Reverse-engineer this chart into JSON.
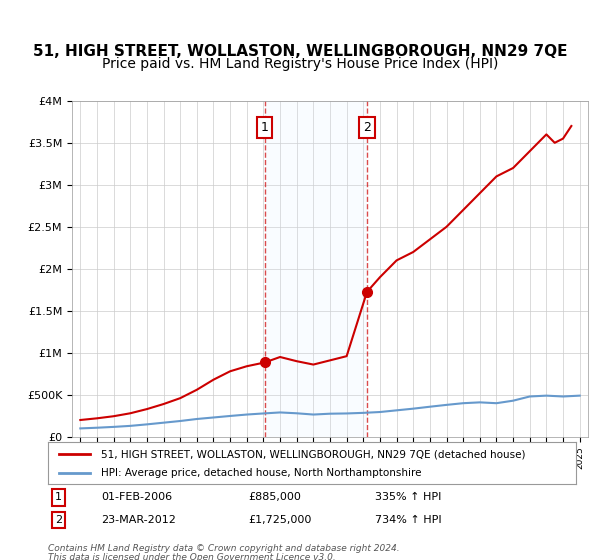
{
  "title": "51, HIGH STREET, WOLLASTON, WELLINGBOROUGH, NN29 7QE",
  "subtitle": "Price paid vs. HM Land Registry's House Price Index (HPI)",
  "legend_line1": "51, HIGH STREET, WOLLASTON, WELLINGBOROUGH, NN29 7QE (detached house)",
  "legend_line2": "HPI: Average price, detached house, North Northamptonshire",
  "footer1": "Contains HM Land Registry data © Crown copyright and database right 2024.",
  "footer2": "This data is licensed under the Open Government Licence v3.0.",
  "annotation1_label": "1",
  "annotation1_date": "01-FEB-2006",
  "annotation1_price": "£885,000",
  "annotation1_hpi": "335% ↑ HPI",
  "annotation2_label": "2",
  "annotation2_date": "23-MAR-2012",
  "annotation2_price": "£1,725,000",
  "annotation2_hpi": "734% ↑ HPI",
  "marker1_x": 2006.08,
  "marker1_y": 885000,
  "marker2_x": 2012.22,
  "marker2_y": 1725000,
  "xlim": [
    1994.5,
    2025.5
  ],
  "ylim": [
    0,
    4000000
  ],
  "yticks": [
    0,
    500000,
    1000000,
    1500000,
    2000000,
    2500000,
    3000000,
    3500000,
    4000000
  ],
  "ytick_labels": [
    "£0",
    "£500K",
    "£1M",
    "£1.5M",
    "£2M",
    "£2.5M",
    "£3M",
    "£3.5M",
    "£4M"
  ],
  "background_color": "#ffffff",
  "grid_color": "#cccccc",
  "red_color": "#cc0000",
  "blue_color": "#6699cc",
  "shaded_color": "#ddeeff",
  "title_fontsize": 11,
  "subtitle_fontsize": 10,
  "red_line": {
    "x": [
      1995,
      1996,
      1997,
      1998,
      1999,
      2000,
      2001,
      2002,
      2003,
      2004,
      2005,
      2006.08,
      2007,
      2008,
      2009,
      2010,
      2011,
      2012.22,
      2013,
      2014,
      2015,
      2016,
      2017,
      2018,
      2019,
      2020,
      2021,
      2022,
      2023,
      2023.5,
      2024,
      2024.5
    ],
    "y": [
      200000,
      220000,
      245000,
      280000,
      330000,
      390000,
      460000,
      560000,
      680000,
      780000,
      840000,
      885000,
      950000,
      900000,
      860000,
      910000,
      960000,
      1725000,
      1900000,
      2100000,
      2200000,
      2350000,
      2500000,
      2700000,
      2900000,
      3100000,
      3200000,
      3400000,
      3600000,
      3500000,
      3550000,
      3700000
    ]
  },
  "blue_line": {
    "x": [
      1995,
      1996,
      1997,
      1998,
      1999,
      2000,
      2001,
      2002,
      2003,
      2004,
      2005,
      2006,
      2007,
      2008,
      2009,
      2010,
      2011,
      2012,
      2013,
      2014,
      2015,
      2016,
      2017,
      2018,
      2019,
      2020,
      2021,
      2022,
      2023,
      2024,
      2025
    ],
    "y": [
      100000,
      108000,
      118000,
      130000,
      148000,
      168000,
      188000,
      212000,
      230000,
      248000,
      265000,
      278000,
      290000,
      280000,
      265000,
      275000,
      278000,
      285000,
      295000,
      315000,
      335000,
      358000,
      380000,
      400000,
      410000,
      400000,
      430000,
      480000,
      490000,
      480000,
      490000
    ]
  }
}
